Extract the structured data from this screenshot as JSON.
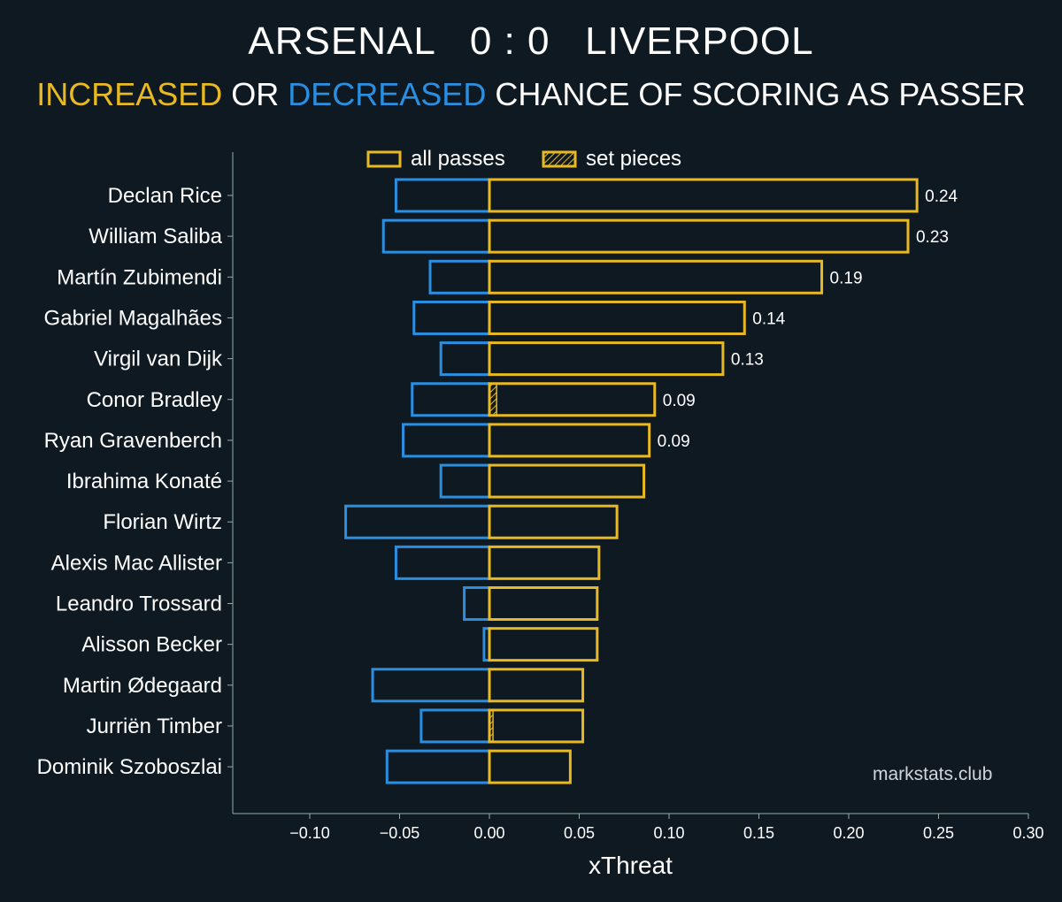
{
  "header": {
    "home_team": "ARSENAL",
    "score": "0 : 0",
    "away_team": "LIVERPOOL",
    "subtitle_increased": "INCREASED",
    "subtitle_or": " OR ",
    "subtitle_decreased": "DECREASED",
    "subtitle_rest": " CHANCE OF SCORING AS PASSER"
  },
  "watermark": "markstats.club",
  "colors": {
    "background": "#0f1922",
    "increased": "#e8b923",
    "decreased": "#2a8fe0",
    "text": "#ffffff",
    "axis": "#8fb0a8"
  },
  "chart_data": {
    "type": "bar",
    "orientation": "horizontal",
    "xlabel": "xThreat",
    "ylabel": "",
    "xlim": [
      -0.142,
      0.3
    ],
    "xticks": [
      -0.1,
      -0.05,
      0.0,
      0.05,
      0.1,
      0.15,
      0.2,
      0.25,
      0.3
    ],
    "xtick_labels": [
      "−0.10",
      "−0.05",
      "0.00",
      "0.05",
      "0.10",
      "0.15",
      "0.20",
      "0.25",
      "0.30"
    ],
    "grid": false,
    "legend_position": "top",
    "legend": [
      {
        "label": "all passes",
        "style": "outline"
      },
      {
        "label": "set pieces",
        "style": "hatched"
      }
    ],
    "categories": [
      "Declan Rice",
      "William Saliba",
      "Martín Zubimendi",
      "Gabriel Magalhães",
      "Virgil van Dijk",
      "Conor Bradley",
      "Ryan Gravenberch",
      "Ibrahima Konaté",
      "Florian Wirtz",
      "Alexis Mac Allister",
      "Leandro Trossard",
      "Alisson Becker",
      "Martin Ødegaard",
      "Jurriën Timber",
      "Dominik Szoboszlai"
    ],
    "series": [
      {
        "name": "increased",
        "values": [
          0.238,
          0.233,
          0.185,
          0.142,
          0.13,
          0.092,
          0.089,
          0.086,
          0.071,
          0.061,
          0.06,
          0.06,
          0.052,
          0.052,
          0.045
        ]
      },
      {
        "name": "decreased",
        "values": [
          -0.052,
          -0.059,
          -0.033,
          -0.042,
          -0.027,
          -0.043,
          -0.048,
          -0.027,
          -0.08,
          -0.052,
          -0.014,
          -0.003,
          -0.065,
          -0.038,
          -0.057
        ]
      },
      {
        "name": "set pieces",
        "values": [
          0,
          0,
          0,
          0,
          0,
          0.004,
          0,
          0,
          0,
          0,
          0,
          0,
          0,
          0.002,
          0
        ]
      }
    ],
    "data_labels": [
      "0.24",
      "0.23",
      "0.19",
      "0.14",
      "0.13",
      "0.09",
      "0.09",
      "",
      "",
      "",
      "",
      "",
      "",
      "",
      ""
    ]
  }
}
